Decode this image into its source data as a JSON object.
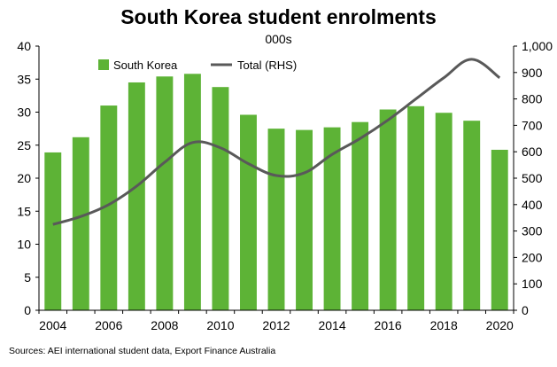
{
  "chart_data": {
    "type": "bar+line",
    "title": "South Korea student enrolments",
    "subtitle": "000s",
    "categories": [
      "2004",
      "2005",
      "2006",
      "2007",
      "2008",
      "2009",
      "2010",
      "2011",
      "2012",
      "2013",
      "2014",
      "2015",
      "2016",
      "2017",
      "2018",
      "2019",
      "2020"
    ],
    "x_tick_labels": [
      "2004",
      "2006",
      "2008",
      "2010",
      "2012",
      "2014",
      "2016",
      "2018",
      "2020"
    ],
    "series": [
      {
        "name": "South Korea",
        "type": "bar",
        "axis": "left",
        "color": "#5DB336",
        "values": [
          23.9,
          26.2,
          31.0,
          34.5,
          35.4,
          35.8,
          33.8,
          29.6,
          27.5,
          27.3,
          27.7,
          28.5,
          30.4,
          30.9,
          29.9,
          28.7,
          24.3
        ]
      },
      {
        "name": "Total (RHS)",
        "type": "line",
        "axis": "right",
        "color": "#595959",
        "values": [
          325,
          355,
          400,
          470,
          560,
          635,
          615,
          555,
          510,
          520,
          590,
          650,
          720,
          800,
          880,
          950,
          880
        ]
      }
    ],
    "y_left": {
      "min": 0,
      "max": 40,
      "ticks": [
        "0",
        "5",
        "10",
        "15",
        "20",
        "25",
        "30",
        "35",
        "40"
      ]
    },
    "y_right": {
      "min": 0,
      "max": 1000,
      "ticks": [
        "0",
        "100",
        "200",
        "300",
        "400",
        "500",
        "600",
        "700",
        "800",
        "900",
        "1,000"
      ]
    },
    "grid": false,
    "legend": "top-left-inside"
  },
  "source": "Sources: AEI international student data, Export Finance Australia"
}
